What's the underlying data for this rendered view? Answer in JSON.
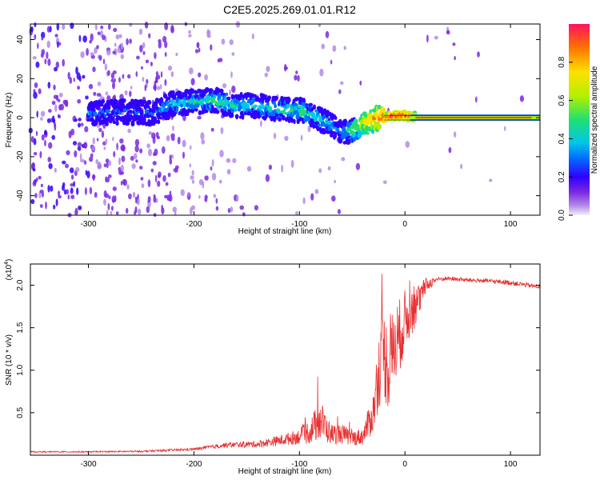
{
  "title": "C2E5.2025.269.01.01.R12",
  "colors": {
    "snr_line": "#e83030",
    "axis": "#000000",
    "track_core": "#ff2a3a"
  },
  "chart_data": [
    {
      "type": "heatmap",
      "xlabel": "Height of straight line (km)",
      "ylabel": "Frequency (Hz)",
      "xlim": [
        -355,
        128
      ],
      "ylim": [
        -50,
        48
      ],
      "xticks": [
        -300,
        -200,
        -100,
        0,
        100
      ],
      "yticks": [
        -40,
        -20,
        0,
        20,
        40
      ],
      "colorbar": {
        "label": "Normalized spectral amplitude",
        "range": [
          0,
          1
        ],
        "ticks": [
          "0.0",
          "0.2",
          "0.4",
          "0.6",
          "0.8"
        ],
        "tick_values": [
          0.0,
          0.2,
          0.4,
          0.6,
          0.8
        ]
      },
      "ridge": {
        "x": [
          -300,
          -280,
          -260,
          -240,
          -220,
          -200,
          -180,
          -160,
          -140,
          -120,
          -100,
          -80,
          -70,
          -60,
          -50,
          -40,
          -30,
          -20,
          -10,
          0,
          10,
          20,
          60,
          100,
          128
        ],
        "freq": [
          2,
          3,
          3,
          2,
          7,
          8,
          9,
          6,
          6,
          4,
          4,
          -1,
          -4,
          -8,
          -6,
          -3,
          -1,
          0,
          1,
          1,
          0.5,
          0,
          0,
          0,
          0
        ],
        "amplitude": [
          0.35,
          0.3,
          0.3,
          0.32,
          0.4,
          0.45,
          0.5,
          0.45,
          0.42,
          0.45,
          0.5,
          0.45,
          0.4,
          0.35,
          0.55,
          0.7,
          0.8,
          0.9,
          0.95,
          0.95,
          0.9,
          0.85,
          0.85,
          0.85,
          0.85
        ]
      }
    },
    {
      "type": "line",
      "xlabel": "Height of straight line (km)",
      "ylabel": "SNR (10 * v/v)",
      "yscale_label": "(x10",
      "yscale_exp": "4",
      "yscale_close": ")",
      "xlim": [
        -355,
        128
      ],
      "ylim": [
        0,
        22500
      ],
      "xticks": [
        -300,
        -200,
        -100,
        0,
        100
      ],
      "yticks": [
        "0.5",
        "1.0",
        "1.5",
        "2.0"
      ],
      "ytick_values": [
        5000,
        10000,
        15000,
        20000
      ],
      "series": [
        {
          "name": "SNR",
          "x": [
            -355,
            -300,
            -250,
            -200,
            -170,
            -140,
            -120,
            -100,
            -90,
            -80,
            -75,
            -70,
            -60,
            -50,
            -40,
            -30,
            -25,
            -20,
            -15,
            -10,
            -5,
            0,
            10,
            20,
            30,
            40,
            60,
            80,
            100,
            128
          ],
          "values": [
            400,
            400,
            450,
            700,
            1200,
            1300,
            1700,
            2200,
            2800,
            4200,
            3200,
            2500,
            2500,
            2000,
            2200,
            5000,
            10000,
            12000,
            10000,
            13000,
            14000,
            16000,
            17500,
            20000,
            20700,
            20800,
            20600,
            20500,
            20300,
            19800
          ],
          "noise": [
            80,
            80,
            100,
            150,
            300,
            400,
            600,
            900,
            1500,
            2500,
            1800,
            1200,
            1200,
            900,
            1000,
            2500,
            4500,
            5500,
            5000,
            5000,
            4500,
            3500,
            2500,
            900,
            300,
            250,
            250,
            250,
            300,
            250
          ]
        }
      ]
    }
  ]
}
